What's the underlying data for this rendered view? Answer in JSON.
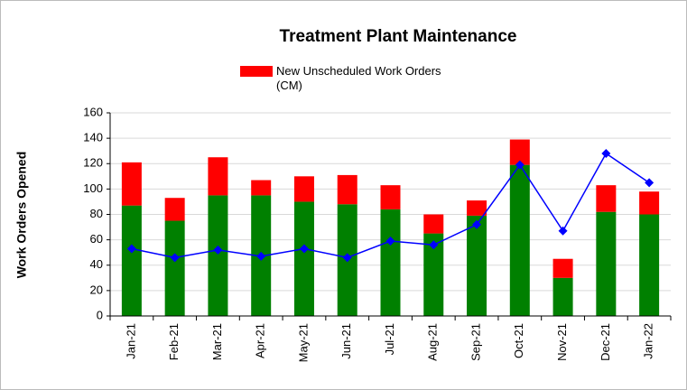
{
  "chart_data": {
    "type": "bar",
    "stacked": true,
    "title": "Treatment Plant Maintenance",
    "y_label": "Work Orders Opened",
    "categories": [
      "Jan-21",
      "Feb-21",
      "Mar-21",
      "Apr-21",
      "May-21",
      "Jun-21",
      "Jul-21",
      "Aug-21",
      "Sep-21",
      "Oct-21",
      "Nov-21",
      "Dec-21",
      "Jan-22"
    ],
    "series": [
      {
        "color": "#008000",
        "values": [
          87,
          75,
          95,
          95,
          90,
          88,
          84,
          65,
          79,
          119,
          30,
          82,
          80
        ]
      },
      {
        "name": "New Unscheduled Work Orders (CM)",
        "color": "#ff0000",
        "values": [
          34,
          18,
          30,
          12,
          20,
          23,
          19,
          15,
          12,
          20,
          15,
          21,
          18
        ]
      },
      {
        "type": "line",
        "marker": "diamond",
        "color": "#0000ff",
        "values": [
          53,
          46,
          52,
          47,
          53,
          46,
          59,
          56,
          72,
          119,
          67,
          128,
          105
        ]
      }
    ],
    "ylim": [
      0,
      160
    ],
    "yticks": [
      0,
      20,
      40,
      60,
      80,
      100,
      120,
      140,
      160
    ],
    "grid": true
  }
}
